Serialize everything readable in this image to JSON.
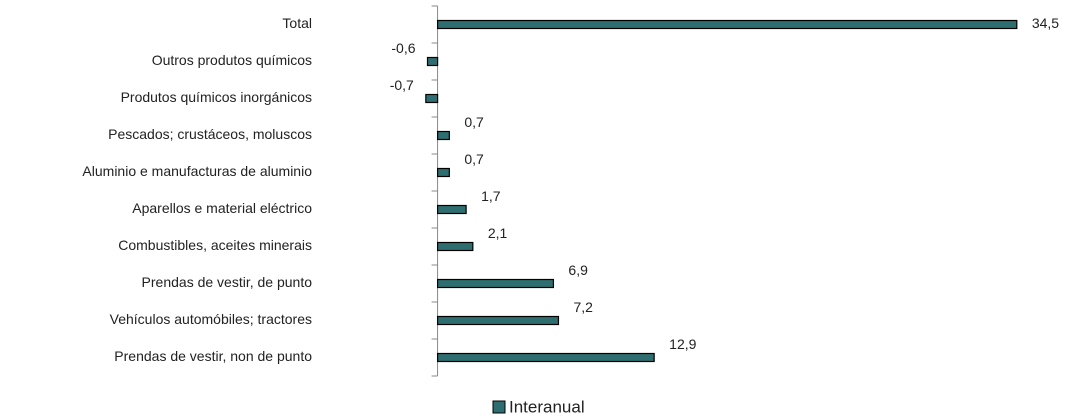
{
  "chart_data": {
    "type": "hbar",
    "categories": [
      "Total",
      "Outros produtos químicos",
      "Produtos químicos inorgánicos",
      "Pescados; crustáceos, moluscos",
      "Aluminio e manufacturas de aluminio",
      "Aparellos e material eléctrico",
      "Combustibles, aceites minerais",
      "Prendas de vestir, de punto",
      "Vehículos automóbiles; tractores",
      "Prendas de vestir, non de punto"
    ],
    "series": [
      {
        "name": "Interanual",
        "color": "#2f6e70",
        "values": [
          34.5,
          -0.6,
          -0.7,
          0.7,
          0.7,
          1.7,
          2.1,
          6.9,
          7.2,
          12.9
        ],
        "value_labels": [
          "34,5",
          "-0,6",
          "-0,7",
          "0,7",
          "0,7",
          "1,7",
          "2,1",
          "6,9",
          "7,2",
          "12,9"
        ]
      }
    ],
    "xlim": [
      -2,
      36
    ],
    "legend": "bottom"
  }
}
